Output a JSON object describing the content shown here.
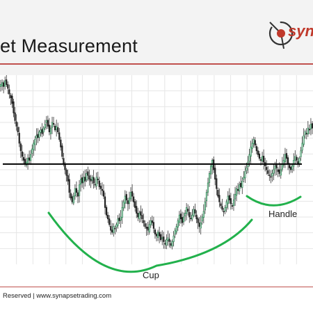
{
  "slide": {
    "title": "et Measurement",
    "logo_text": "syn",
    "footer": "Reserved | www.synapsetrading.com"
  },
  "colors": {
    "accent_rule": "#c0504d",
    "bull_candle": "#2e8b57",
    "bear_candle": "#222222",
    "pattern_curve": "#22b14c",
    "neckline": "#000000"
  },
  "chart_data": {
    "type": "candlestick",
    "title": "",
    "xlabel": "",
    "ylabel": "",
    "ylim": [
      0,
      100
    ],
    "grid": true,
    "annotations": [
      {
        "label": "Cup"
      },
      {
        "label": "Handle"
      }
    ],
    "neckline_level": 53,
    "closes": [
      95,
      96,
      94,
      97,
      95,
      93,
      90,
      88,
      85,
      80,
      76,
      73,
      70,
      64,
      60,
      57,
      55,
      53,
      54,
      56,
      55,
      58,
      61,
      64,
      66,
      68,
      67,
      70,
      71,
      69,
      72,
      74,
      76,
      73,
      70,
      72,
      75,
      74,
      71,
      73,
      70,
      66,
      62,
      57,
      53,
      50,
      47,
      44,
      38,
      35,
      33,
      36,
      40,
      38,
      36,
      42,
      45,
      43,
      46,
      44,
      48,
      47,
      45,
      44,
      46,
      43,
      42,
      46,
      45,
      41,
      40,
      39,
      36,
      30,
      26,
      24,
      21,
      18,
      17,
      20,
      19,
      21,
      24,
      23,
      25,
      30,
      33,
      36,
      34,
      32,
      35,
      38,
      36,
      33,
      30,
      27,
      25,
      27,
      26,
      24,
      22,
      20,
      19,
      18,
      21,
      23,
      22,
      19,
      16,
      15,
      17,
      15,
      13,
      14,
      12,
      11,
      13,
      14,
      12,
      10,
      12,
      15,
      18,
      20,
      23,
      26,
      24,
      22,
      25,
      27,
      30,
      28,
      25,
      24,
      26,
      29,
      27,
      24,
      22,
      20,
      22,
      25,
      28,
      33,
      38,
      43,
      48,
      52,
      55,
      50,
      45,
      40,
      36,
      33,
      31,
      29,
      28,
      30,
      33,
      36,
      34,
      32,
      31,
      34,
      37,
      40,
      39,
      42,
      41,
      44,
      46,
      49,
      51,
      54,
      58,
      62,
      64,
      66,
      63,
      60,
      58,
      56,
      55,
      57,
      54,
      52,
      50,
      48,
      47,
      46,
      48,
      50,
      52,
      51,
      49,
      48,
      50,
      53,
      55,
      58,
      56,
      53,
      51,
      50,
      52,
      55,
      57,
      55,
      53,
      56,
      60,
      64,
      68,
      70,
      69,
      72,
      71,
      74,
      72
    ]
  }
}
